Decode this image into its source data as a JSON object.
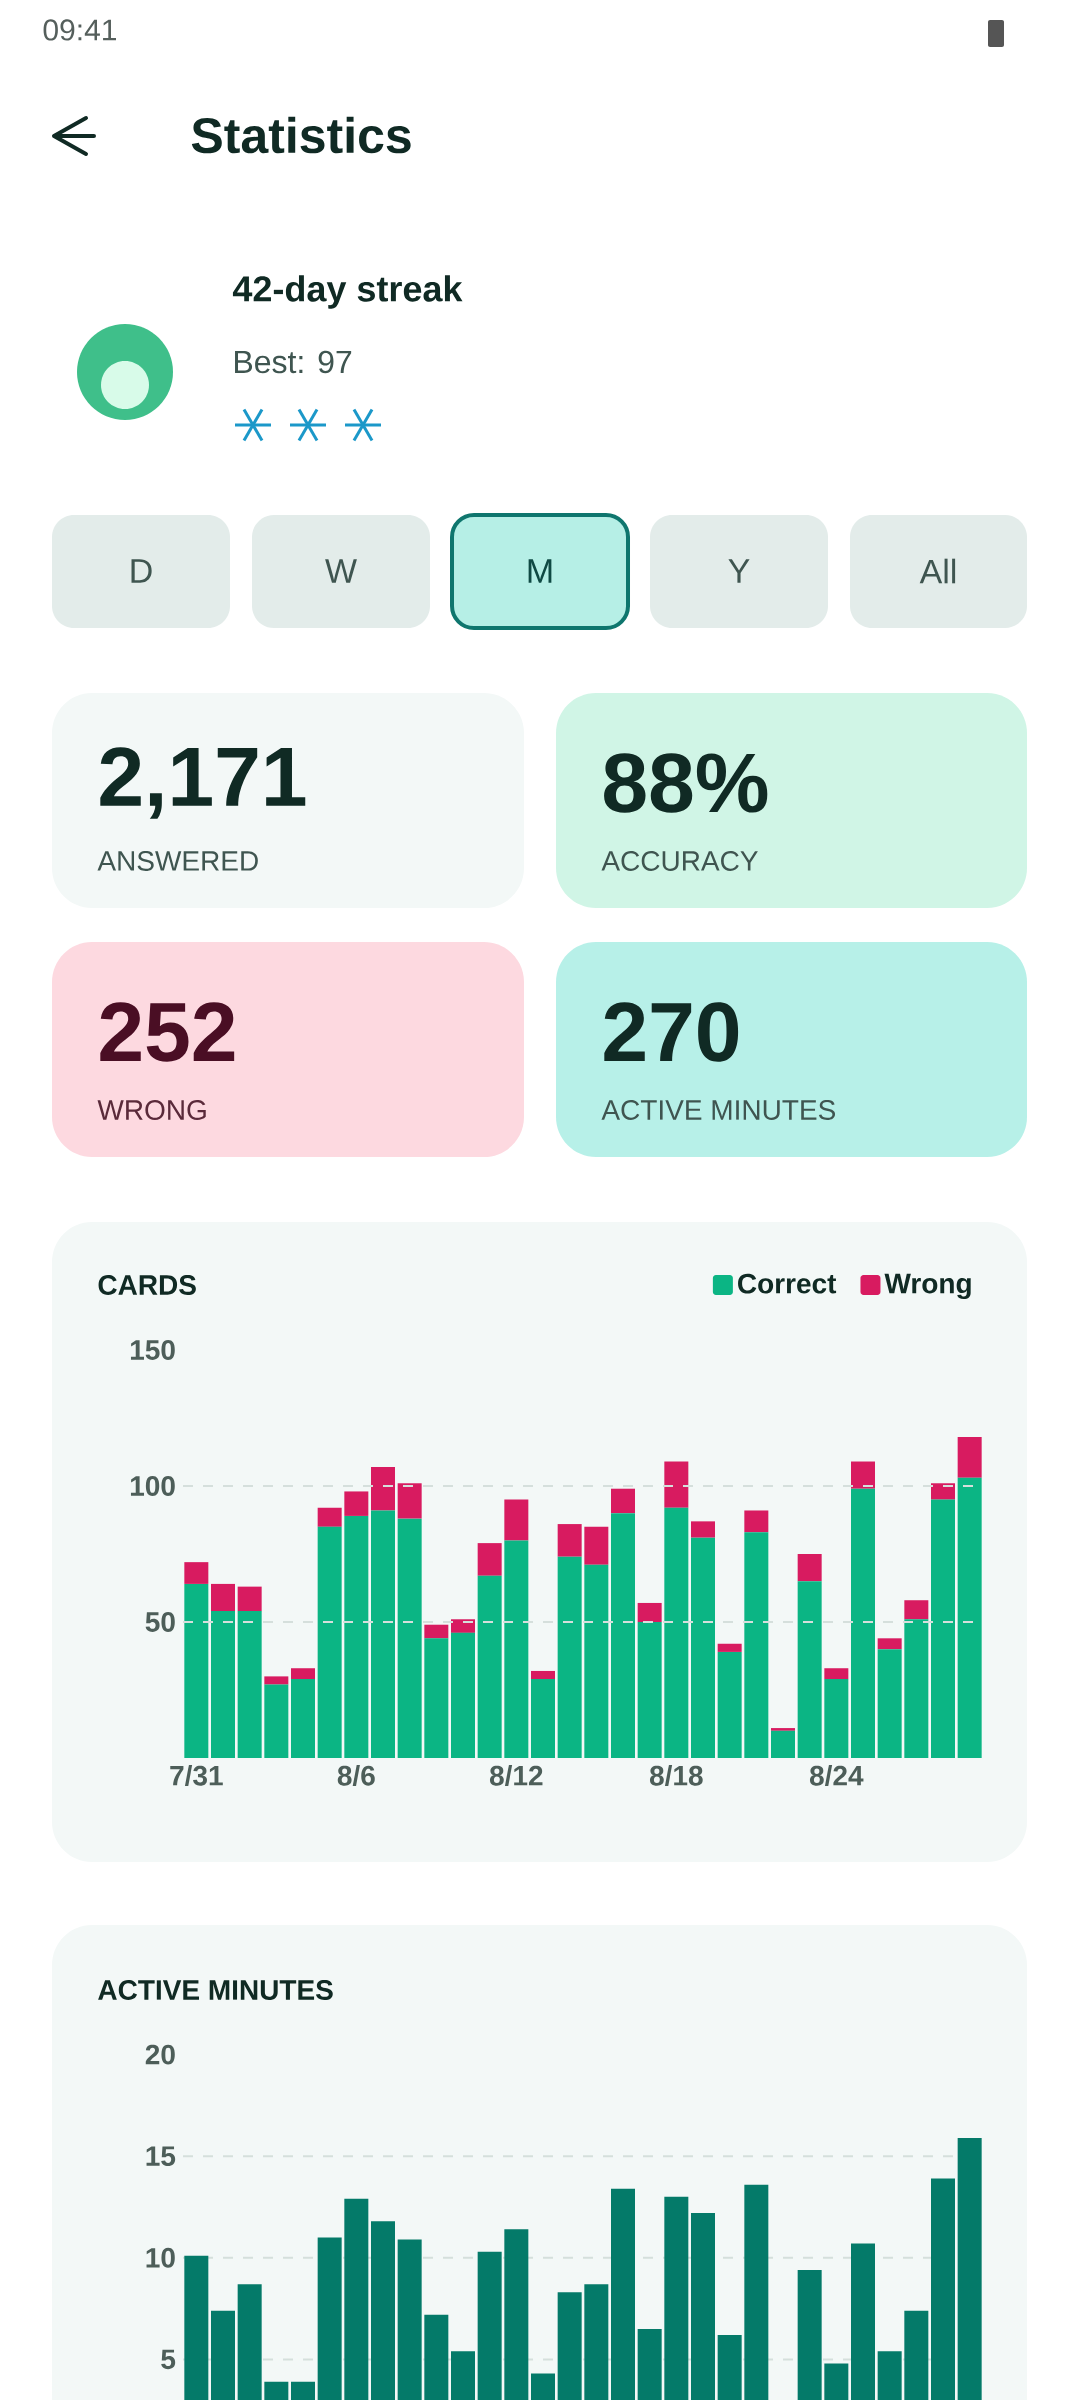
{
  "chart_data": [
    {
      "type": "other",
      "title": "Statistics",
      "annotations": [
        "09:41",
        "42-day streak",
        "Best: 97",
        "D",
        "W",
        "M",
        "Y",
        "All",
        "2,171",
        "ANSWERED",
        "88%",
        "ACCURACY",
        "252",
        "WRONG",
        "270",
        "ACTIVE MINUTES"
      ]
    },
    {
      "type": "bar",
      "title": "CARDS",
      "stacked": true,
      "legend": "top right",
      "grid": "y",
      "categories": [
        "7/31",
        null,
        null,
        null,
        null,
        null,
        "8/6",
        null,
        null,
        null,
        null,
        null,
        "8/12",
        null,
        null,
        null,
        null,
        null,
        "8/18",
        null,
        null,
        null,
        null,
        null,
        "8/24",
        null,
        null,
        null,
        null,
        null
      ],
      "series": [
        {
          "name": "Correct",
          "color": "#0bb584",
          "values": [
            64,
            54,
            54,
            27,
            29,
            85,
            89,
            91,
            88,
            44,
            46,
            67,
            80,
            29,
            74,
            71,
            90,
            50,
            92,
            81,
            39,
            83,
            10,
            65,
            29,
            99,
            40,
            51,
            95,
            103
          ]
        },
        {
          "name": "Wrong",
          "color": "#d81b60",
          "values": [
            8,
            10,
            9,
            3,
            4,
            7,
            9,
            16,
            13,
            5,
            5,
            12,
            15,
            3,
            12,
            14,
            9,
            7,
            17,
            6,
            3,
            8,
            1,
            10,
            4,
            10,
            4,
            7,
            6,
            15
          ]
        }
      ],
      "ylim": [
        0,
        150
      ],
      "yticks": [
        50,
        100,
        150
      ]
    },
    {
      "type": "bar",
      "title": "ACTIVE MINUTES",
      "grid": "y",
      "tick_labels": "y",
      "color": "#047a69",
      "categories": [
        null,
        null,
        null,
        null,
        null,
        null,
        null,
        null,
        null,
        null,
        null,
        null,
        null,
        null,
        null,
        null,
        null,
        null,
        null,
        null,
        null,
        null,
        null,
        null,
        null,
        null,
        null,
        null,
        null,
        null
      ],
      "values": [
        10.1,
        7.4,
        8.7,
        3.9,
        3.9,
        11,
        12.9,
        11.8,
        10.9,
        7.2,
        5.4,
        10.3,
        11.4,
        4.3,
        8.3,
        8.7,
        13.4,
        6.5,
        13,
        12.2,
        6.2,
        13.6,
        null,
        9.4,
        4.8,
        10.7,
        5.4,
        7.4,
        13.9,
        15.9
      ],
      "ylim": [
        0,
        20
      ],
      "yticks": [
        5,
        10,
        15,
        20
      ]
    }
  ]
}
